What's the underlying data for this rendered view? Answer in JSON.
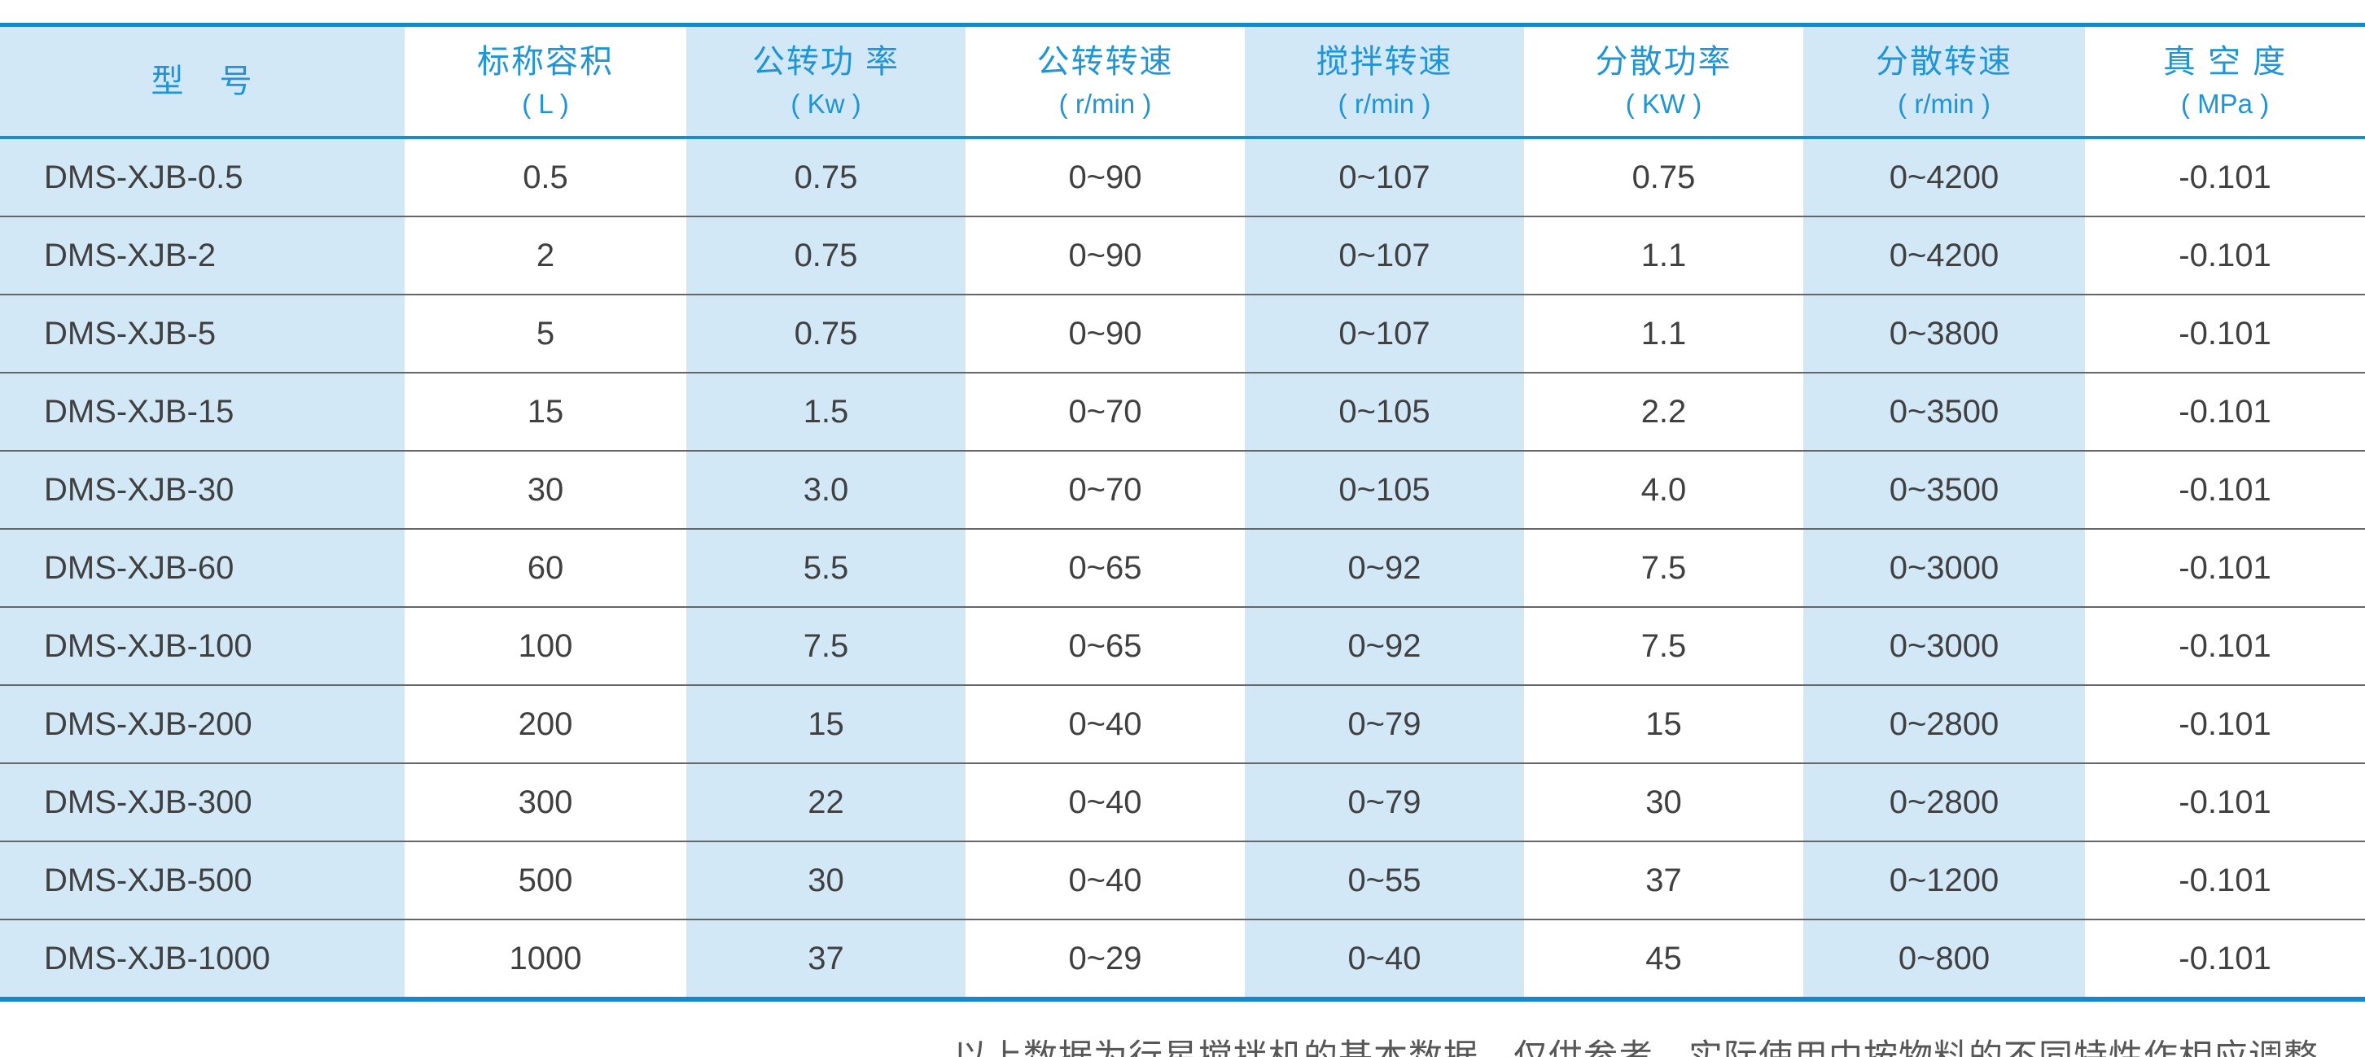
{
  "table": {
    "columns": [
      {
        "title": "型　号",
        "unit": "",
        "striped": true
      },
      {
        "title": "标称容积",
        "unit": "( L )",
        "striped": false
      },
      {
        "title": "公转功 率",
        "unit": "( Kw )",
        "striped": true
      },
      {
        "title": "公转转速",
        "unit": "( r/min )",
        "striped": false
      },
      {
        "title": "搅拌转速",
        "unit": "( r/min )",
        "striped": true
      },
      {
        "title": "分散功率",
        "unit": "( KW )",
        "striped": false
      },
      {
        "title": "分散转速",
        "unit": "( r/min )",
        "striped": true
      },
      {
        "title": "真 空 度",
        "unit": "( MPa )",
        "striped": false
      }
    ],
    "rows": [
      [
        "DMS-XJB-0.5",
        "0.5",
        "0.75",
        "0~90",
        "0~107",
        "0.75",
        "0~4200",
        "-0.101"
      ],
      [
        "DMS-XJB-2",
        "2",
        "0.75",
        "0~90",
        "0~107",
        "1.1",
        "0~4200",
        "-0.101"
      ],
      [
        "DMS-XJB-5",
        "5",
        "0.75",
        "0~90",
        "0~107",
        "1.1",
        "0~3800",
        "-0.101"
      ],
      [
        "DMS-XJB-15",
        "15",
        "1.5",
        "0~70",
        "0~105",
        "2.2",
        "0~3500",
        "-0.101"
      ],
      [
        "DMS-XJB-30",
        "30",
        "3.0",
        "0~70",
        "0~105",
        "4.0",
        "0~3500",
        "-0.101"
      ],
      [
        "DMS-XJB-60",
        "60",
        "5.5",
        "0~65",
        "0~92",
        "7.5",
        "0~3000",
        "-0.101"
      ],
      [
        "DMS-XJB-100",
        "100",
        "7.5",
        "0~65",
        "0~92",
        "7.5",
        "0~3000",
        "-0.101"
      ],
      [
        "DMS-XJB-200",
        "200",
        "15",
        "0~40",
        "0~79",
        "15",
        "0~2800",
        "-0.101"
      ],
      [
        "DMS-XJB-300",
        "300",
        "22",
        "0~40",
        "0~79",
        "30",
        "0~2800",
        "-0.101"
      ],
      [
        "DMS-XJB-500",
        "500",
        "30",
        "0~40",
        "0~55",
        "37",
        "0~1200",
        "-0.101"
      ],
      [
        "DMS-XJB-1000",
        "1000",
        "37",
        "0~29",
        "0~40",
        "45",
        "0~800",
        "-0.101"
      ]
    ]
  },
  "footer": {
    "note": "以上数据为行星搅拌机的基本数据，仅供参考，实际使用中按物料的不同特性作相应调整。"
  },
  "colors": {
    "accent_blue_line": "#1787cd",
    "header_text_blue": "#2095d5",
    "stripe_light_blue": "#d2e8f7",
    "row_separator_gray": "#666666",
    "data_text_gray": "#404040"
  }
}
